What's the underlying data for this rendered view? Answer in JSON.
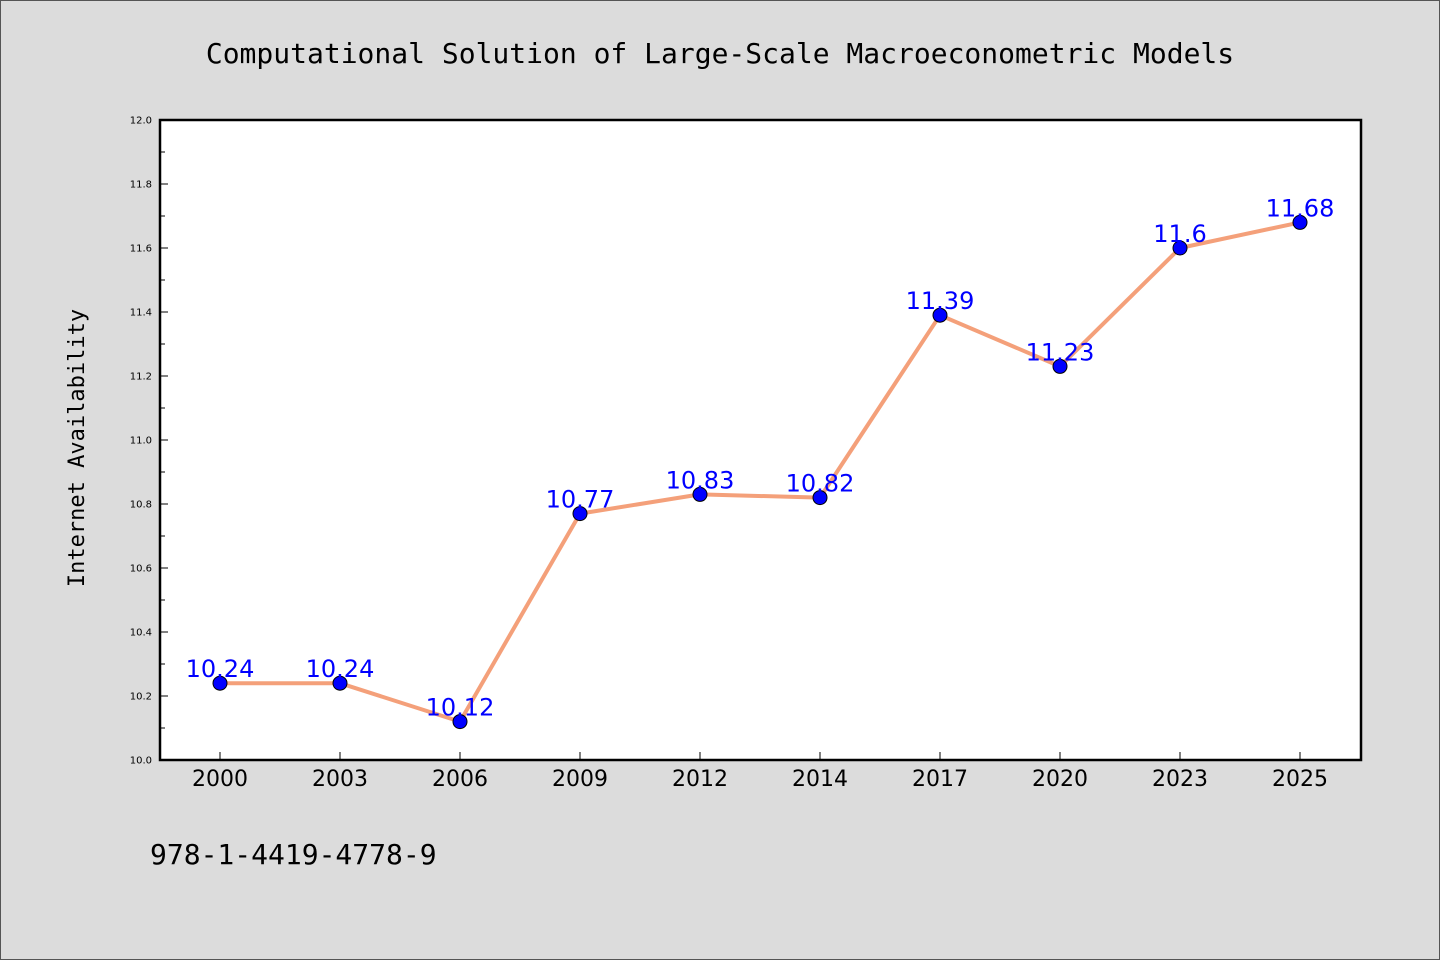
{
  "chart_data": {
    "type": "line",
    "title": "Computational Solution of Large-Scale Macroeconometric Models",
    "xlabel": "",
    "ylabel": "Internet Availability",
    "categories": [
      "2000",
      "2003",
      "2006",
      "2009",
      "2012",
      "2014",
      "2017",
      "2020",
      "2023",
      "2025"
    ],
    "series": [
      {
        "values": [
          10.24,
          10.24,
          10.12,
          10.77,
          10.83,
          10.82,
          11.39,
          11.23,
          11.6,
          11.68
        ]
      }
    ],
    "data_labels": [
      "10.24",
      "10.24",
      "10.12",
      "10.77",
      "10.83",
      "10.82",
      "11.39",
      "11.23",
      "11.6",
      "11.68"
    ],
    "ylim": [
      10.0,
      12.0
    ],
    "yticks": [
      "10.0",
      "10.2",
      "10.4",
      "10.6",
      "10.8",
      "11.0",
      "11.2",
      "11.4",
      "11.6",
      "11.8",
      "12.0"
    ],
    "grid": false,
    "legend": "none",
    "colors": {
      "line": "#f4a07a",
      "marker": "#0000ff",
      "label": "#0000ff"
    }
  },
  "footer": {
    "isbn": "978-1-4419-4778-9"
  }
}
